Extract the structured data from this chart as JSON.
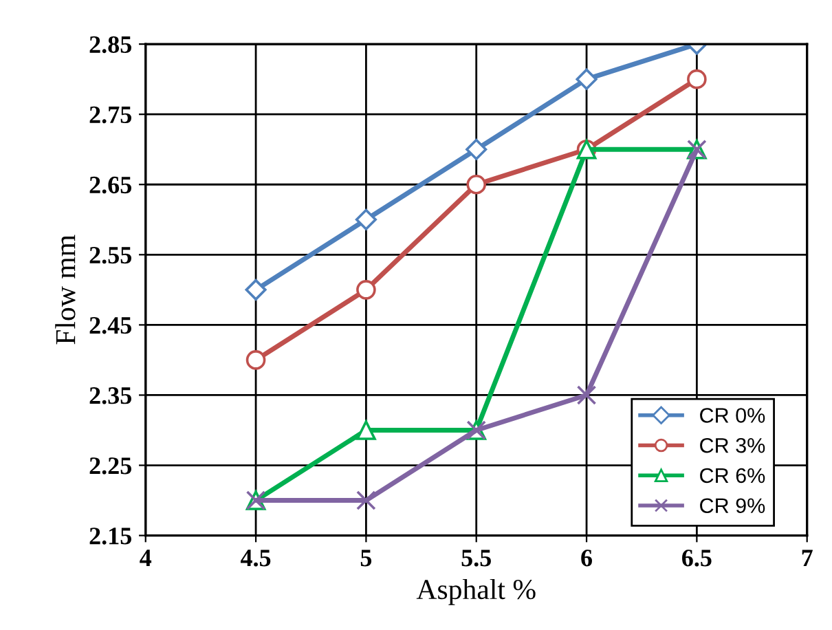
{
  "chart_data": {
    "type": "line",
    "xlabel": "Asphalt %",
    "ylabel": "Flow mm",
    "x": [
      4.5,
      5,
      5.5,
      6,
      6.5
    ],
    "series": [
      {
        "name": "CR 0%",
        "color": "#4f81bd",
        "marker": "diamond",
        "values": [
          2.5,
          2.6,
          2.7,
          2.8,
          2.85
        ]
      },
      {
        "name": "CR 3%",
        "color": "#c0504d",
        "marker": "circle",
        "values": [
          2.4,
          2.5,
          2.65,
          2.7,
          2.8
        ]
      },
      {
        "name": "CR 6%",
        "color": "#00b050",
        "marker": "triangle",
        "values": [
          2.2,
          2.3,
          2.3,
          2.7,
          2.7
        ]
      },
      {
        "name": "CR 9%",
        "color": "#8064a2",
        "marker": "cross",
        "values": [
          2.2,
          2.2,
          2.3,
          2.35,
          2.7
        ]
      }
    ],
    "xlim": [
      4,
      7
    ],
    "xticks": [
      4,
      4.5,
      5,
      5.5,
      6,
      6.5,
      7
    ],
    "ylim": [
      2.15,
      2.85
    ],
    "yticks": [
      2.15,
      2.25,
      2.35,
      2.45,
      2.55,
      2.65,
      2.75,
      2.85
    ],
    "grid": true,
    "legend": "bottom right",
    "line_style": "solid"
  }
}
